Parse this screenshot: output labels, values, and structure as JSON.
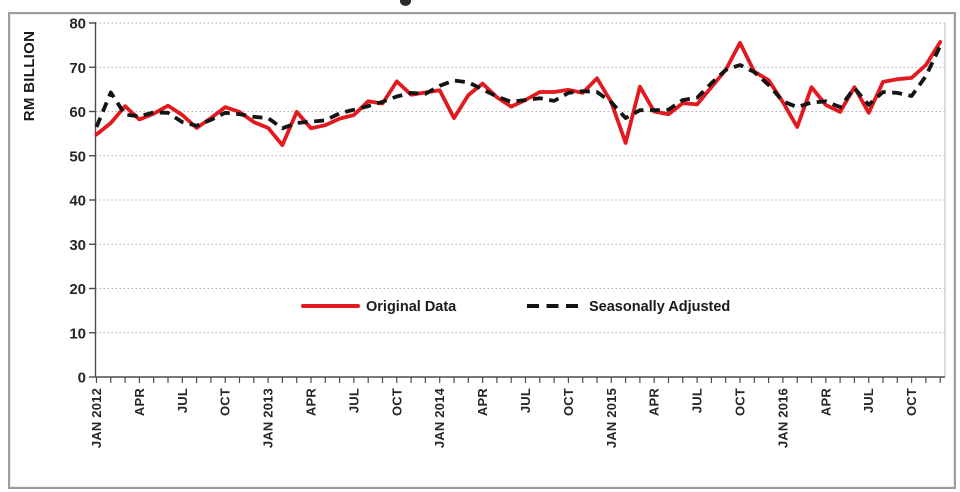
{
  "y_axis": {
    "title": "RM BILLION",
    "ticks": [
      0,
      10,
      20,
      30,
      40,
      50,
      60,
      70,
      80
    ]
  },
  "x_axis": {
    "tick_labels": [
      "JAN 2012",
      "APR",
      "JUL",
      "OCT",
      "JAN 2013",
      "APR",
      "JUL",
      "OCT",
      "JAN 2014",
      "APR",
      "JUL",
      "OCT",
      "JAN 2015",
      "APR",
      "JUL",
      "OCT",
      "JAN 2016",
      "APR",
      "JUL",
      "OCT"
    ],
    "months_per_label": 3,
    "total_months": 60
  },
  "legend": [
    {
      "label": "Original Data",
      "color": "#e21a1f",
      "style": "solid"
    },
    {
      "label": "Seasonally Adjusted",
      "color": "#141414",
      "style": "dashed"
    }
  ],
  "colors": {
    "grid": "#b0b0b0",
    "axis": "#4d4d4d",
    "plot_border": "#c9c9c9",
    "label": "#262626"
  },
  "chart_data": {
    "type": "line",
    "x_start": "JAN 2012",
    "x_end": "DEC 2016",
    "frequency": "monthly",
    "ylabel": "RM BILLION",
    "ylim": [
      0,
      80
    ],
    "grid": "horizontal-dotted",
    "legend_position": "inside-lower-center",
    "series": [
      {
        "name": "Original Data",
        "color": "#e21a1f",
        "dash": "solid",
        "values": [
          54.8,
          57.4,
          61.2,
          58.2,
          59.5,
          61.3,
          59.2,
          56.3,
          58.5,
          61.0,
          59.9,
          57.6,
          56.3,
          52.4,
          59.9,
          56.2,
          56.9,
          58.4,
          59.2,
          62.3,
          61.8,
          66.8,
          63.8,
          64.3,
          64.8,
          58.5,
          63.7,
          66.3,
          63.2,
          61.1,
          62.6,
          64.4,
          64.4,
          64.9,
          64.2,
          67.5,
          62.1,
          52.9,
          65.6,
          60.0,
          59.4,
          61.9,
          61.6,
          65.5,
          69.4,
          75.5,
          69.0,
          67.1,
          62.1,
          56.5,
          65.5,
          61.5,
          59.9,
          65.5,
          59.7,
          66.7,
          67.3,
          67.6,
          70.5,
          75.7
        ]
      },
      {
        "name": "Seasonally Adjusted",
        "color": "#141414",
        "dash": "dashed",
        "values": [
          56.5,
          64.3,
          59.3,
          58.9,
          59.8,
          59.7,
          57.6,
          56.8,
          58.1,
          59.7,
          59.4,
          58.8,
          58.5,
          56.2,
          57.4,
          57.7,
          58.0,
          59.6,
          60.4,
          61.2,
          62.2,
          63.4,
          64.2,
          64.0,
          65.8,
          67.0,
          66.6,
          65.0,
          63.4,
          62.2,
          62.6,
          63.0,
          62.4,
          64.2,
          64.6,
          64.4,
          62.1,
          58.5,
          60.3,
          60.3,
          60.4,
          62.6,
          63.1,
          66.4,
          69.4,
          70.5,
          68.9,
          66.0,
          62.3,
          61.0,
          62.0,
          62.3,
          61.0,
          65.3,
          61.5,
          64.4,
          64.2,
          63.5,
          68.0,
          74.8
        ]
      }
    ]
  }
}
